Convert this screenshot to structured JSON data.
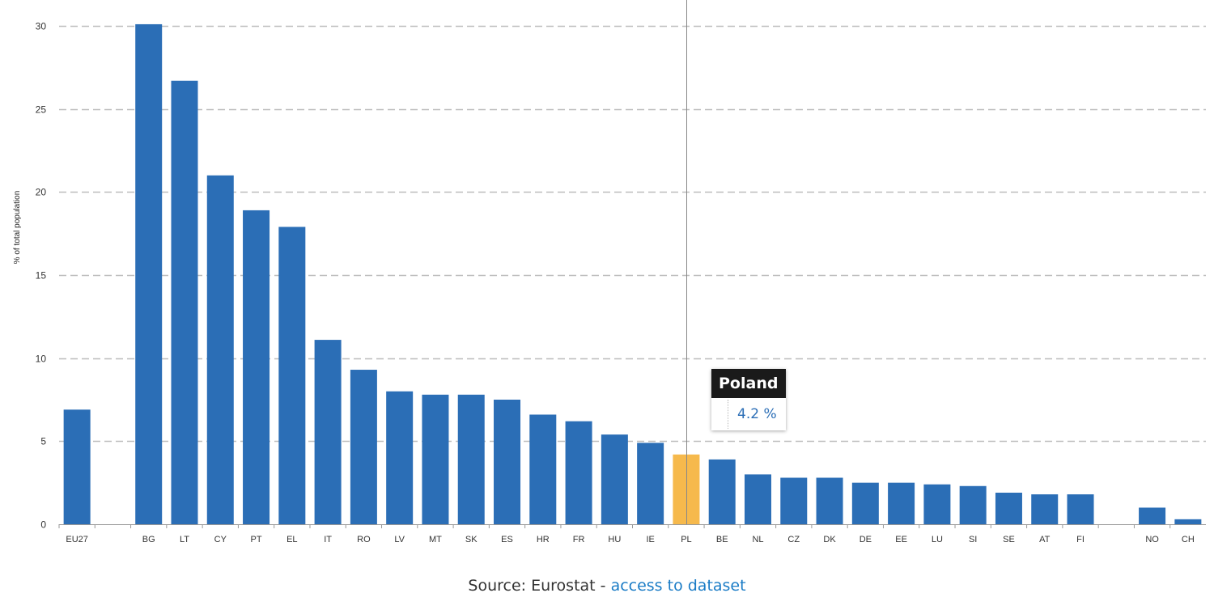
{
  "chart_data": {
    "type": "bar",
    "ylabel": "% of total population",
    "ylim": [
      0,
      30
    ],
    "yticks": [
      0,
      5,
      10,
      15,
      20,
      25,
      30
    ],
    "grid": "dashed horizontal",
    "categories": [
      "EU27",
      "",
      "BG",
      "LT",
      "CY",
      "PT",
      "EL",
      "IT",
      "RO",
      "LV",
      "MT",
      "SK",
      "ES",
      "HR",
      "FR",
      "HU",
      "IE",
      "PL",
      "BE",
      "NL",
      "CZ",
      "DK",
      "DE",
      "EE",
      "LU",
      "SI",
      "SE",
      "AT",
      "FI",
      "",
      "NO",
      "CH"
    ],
    "values": [
      6.9,
      null,
      30.1,
      26.7,
      21.0,
      18.9,
      17.9,
      11.1,
      9.3,
      8.0,
      7.8,
      7.8,
      7.5,
      6.6,
      6.2,
      5.4,
      4.9,
      4.2,
      3.9,
      3.0,
      2.8,
      2.8,
      2.5,
      2.5,
      2.4,
      2.3,
      1.9,
      1.8,
      1.8,
      null,
      1.0,
      0.3
    ],
    "highlight_index": 17,
    "bar_color": "#2b6eb6",
    "highlight_color": "#f6b94c"
  },
  "tooltip": {
    "title": "Poland",
    "value": "4.2 %"
  },
  "source": {
    "text": "Source: Eurostat - ",
    "link": "access to dataset"
  }
}
